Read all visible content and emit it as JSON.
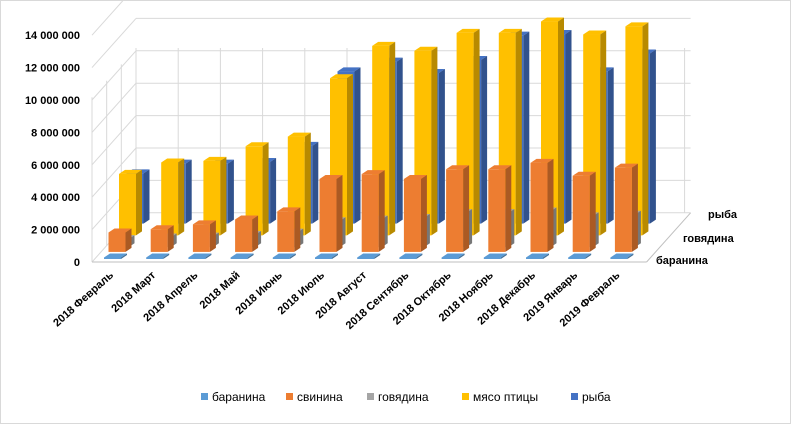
{
  "chart_data": {
    "type": "bar",
    "subtype": "3d-column",
    "title": "",
    "xlabel": "",
    "ylabel": "",
    "ylim": [
      0,
      14000000
    ],
    "y_ticks": [
      0,
      2000000,
      4000000,
      6000000,
      8000000,
      10000000,
      12000000,
      14000000
    ],
    "y_tick_labels": [
      "0",
      "2 000 000",
      "4 000 000",
      "6 000 000",
      "8 000 000",
      "10 000 000",
      "12 000 000",
      "14 000 000"
    ],
    "categories": [
      "2018 Февраль",
      "2018 Март",
      "2018 Апрель",
      "2018 Май",
      "2018 Июнь",
      "2018 Июль",
      "2018 Август",
      "2018 Сентябрь",
      "2018 Октябрь",
      "2018 Ноябрь",
      "2018 Декабрь",
      "2019 Январь",
      "2019 Февраль"
    ],
    "depth_labels": [
      "рыба",
      "говядина",
      "баранина"
    ],
    "grid": true,
    "legend_position": "bottom",
    "series": [
      {
        "name": "баранина",
        "color": "#5b9bd5",
        "values": [
          10000,
          10000,
          10000,
          10000,
          10000,
          10000,
          10000,
          10000,
          10000,
          10000,
          10000,
          10000,
          10000
        ]
      },
      {
        "name": "свинина",
        "color": "#ed7d31",
        "values": [
          1200000,
          1400000,
          1700000,
          2000000,
          2500000,
          4500000,
          4800000,
          4500000,
          5100000,
          5100000,
          5500000,
          4700000,
          5200000
        ]
      },
      {
        "name": "говядина",
        "color": "#a5a5a5",
        "values": [
          500000,
          600000,
          650000,
          750000,
          900000,
          1600000,
          1700000,
          1800000,
          2100000,
          2100000,
          2200000,
          1900000,
          2000000
        ]
      },
      {
        "name": "мясо птицы",
        "color": "#ffc000",
        "values": [
          3800000,
          4500000,
          4600000,
          5500000,
          6100000,
          9700000,
          11700000,
          11400000,
          12500000,
          12500000,
          13200000,
          12400000,
          12900000
        ]
      },
      {
        "name": "рыба",
        "color": "#4472c4",
        "values": [
          3100000,
          3700000,
          3700000,
          3800000,
          4800000,
          9400000,
          10000000,
          9300000,
          10100000,
          11600000,
          11700000,
          9400000,
          10500000
        ]
      }
    ]
  }
}
